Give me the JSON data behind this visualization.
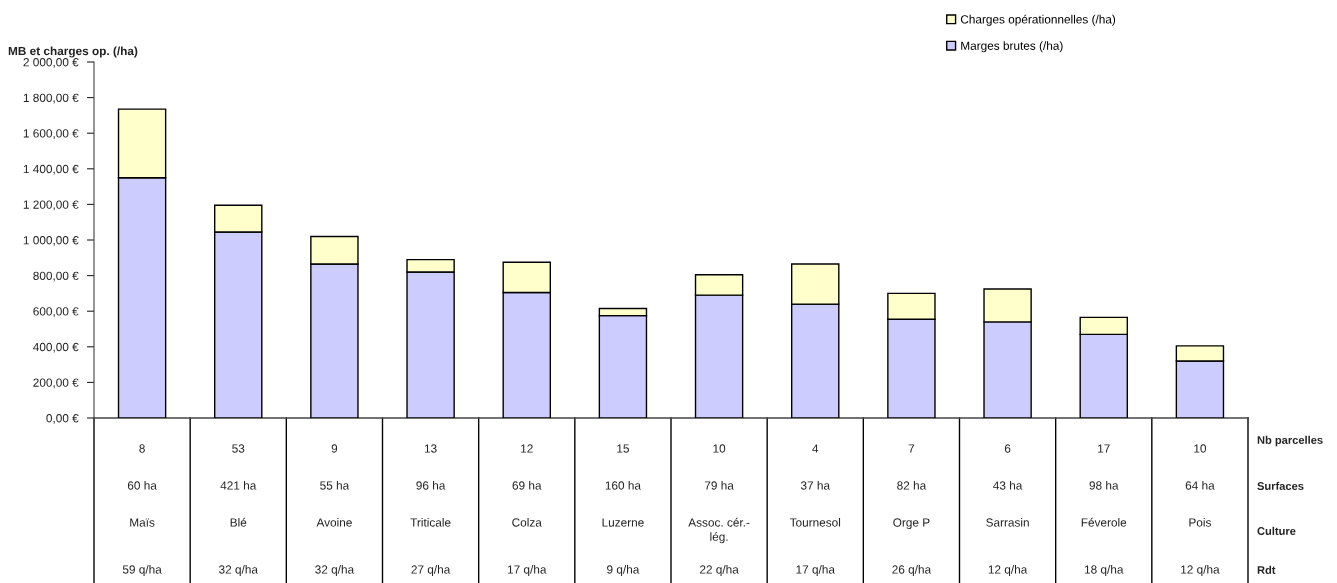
{
  "chart_data": {
    "type": "bar",
    "stacked": true,
    "ylabel": "MB et charges op. (/ha)",
    "categories": [
      "8\n60 ha\nMaïs\n59 q/ha",
      "53\n421 ha\nBlé\n32 q/ha",
      "9\n55 ha\nAvoine\n32 q/ha",
      "13\n96 ha\nTriticale\n27 q/ha",
      "12\n69 ha\nColza\n17 q/ha",
      "15\n160 ha\nLuzerne\n9 q/ha",
      "10\n79 ha\nAssoc. cér.-lég.\n22 q/ha",
      "4\n37 ha\nTournesol\n17 q/ha",
      "7\n82 ha\nOrge P\n26 q/ha",
      "6\n43 ha\nSarrasin\n12 q/ha",
      "17\n98 ha\nFéverole\n18 q/ha",
      "10\n64 ha\nPois\n12 q/ha"
    ],
    "series": [
      {
        "name": "Marges brutes (/ha)",
        "color": "#ccccff",
        "values": [
          1350,
          1045,
          865,
          820,
          705,
          575,
          690,
          640,
          555,
          540,
          470,
          320
        ]
      },
      {
        "name": "Charges opérationnelles (/ha)",
        "color": "#ffffcc",
        "values": [
          385,
          150,
          155,
          70,
          170,
          40,
          115,
          225,
          145,
          185,
          95,
          85
        ]
      }
    ],
    "ylim": [
      0,
      2000
    ],
    "yticks": [
      {
        "value": 0,
        "label": "0,00 €"
      },
      {
        "value": 200,
        "label": "200,00 €"
      },
      {
        "value": 400,
        "label": "400,00 €"
      },
      {
        "value": 600,
        "label": "600,00 €"
      },
      {
        "value": 800,
        "label": "800,00 €"
      },
      {
        "value": 1000,
        "label": "1 000,00 €"
      },
      {
        "value": 1200,
        "label": "1 200,00 €"
      },
      {
        "value": 1400,
        "label": "1 400,00 €"
      },
      {
        "value": 1600,
        "label": "1 600,00 €"
      },
      {
        "value": 1800,
        "label": "1 800,00 €"
      },
      {
        "value": 2000,
        "label": "2 000,00 €"
      }
    ],
    "legend": "top right",
    "annotations": [
      "Nb parcelles",
      "Surfaces",
      "Culture",
      "Rdt"
    ]
  }
}
